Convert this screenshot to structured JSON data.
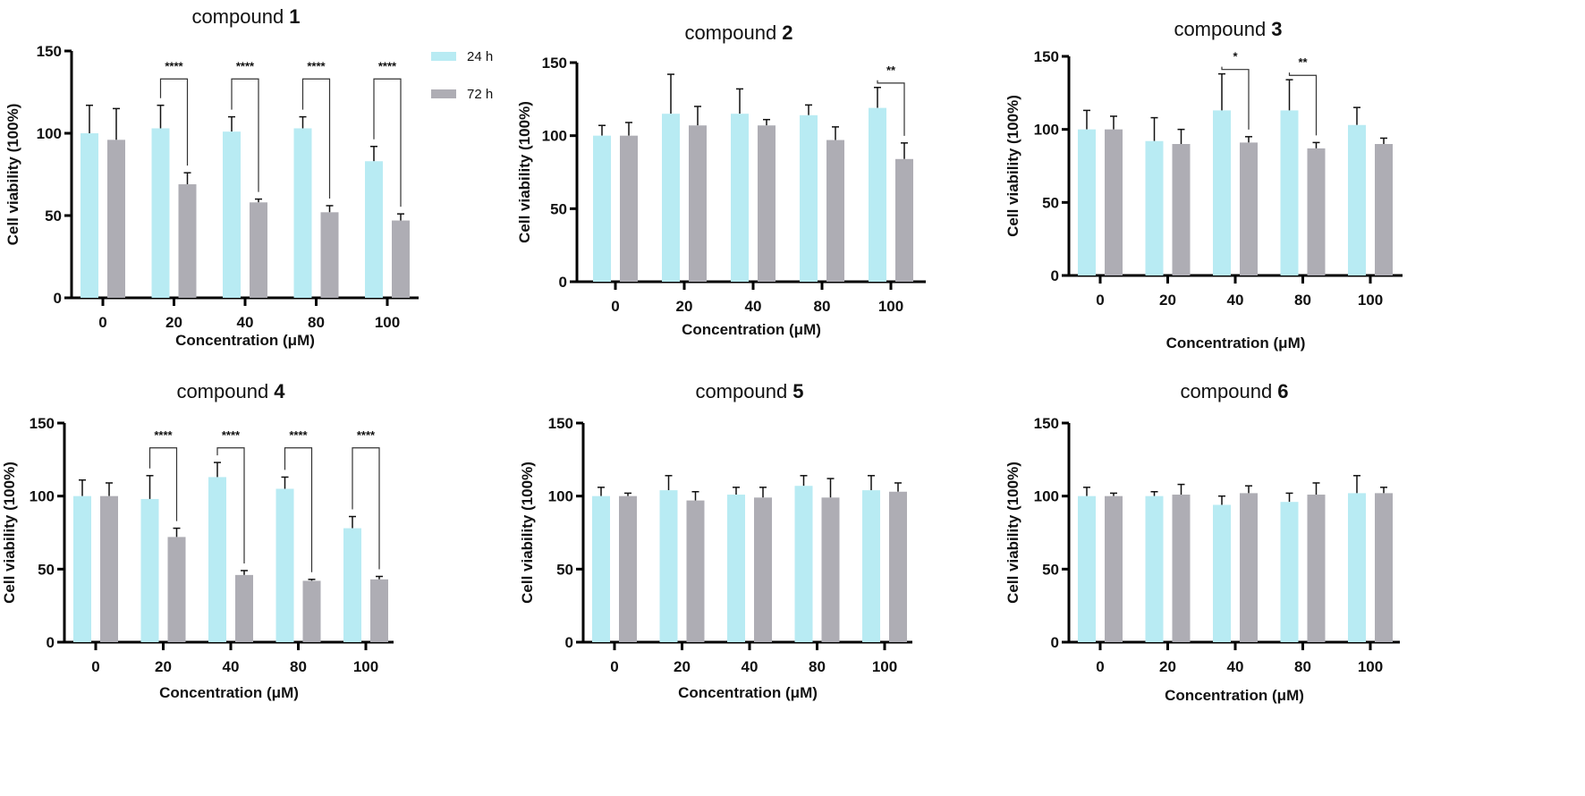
{
  "legend": [
    {
      "label": "24 h",
      "color": "#b8ebf3"
    },
    {
      "label": "72 h",
      "color": "#aeadb4"
    }
  ],
  "chart_data": [
    {
      "type": "bar",
      "title_prefix": "compound",
      "title_number": "1",
      "xlabel": "Concentration (μM)",
      "ylabel": "Cell viability (100%)",
      "ylim": [
        0,
        150
      ],
      "yticks": [
        0,
        50,
        100,
        150
      ],
      "categories": [
        "0",
        "20",
        "40",
        "80",
        "100"
      ],
      "series": [
        {
          "name": "24 h",
          "values": [
            100,
            103,
            101,
            103,
            83
          ],
          "error_top": [
            117,
            117,
            110,
            110,
            92
          ]
        },
        {
          "name": "72 h",
          "values": [
            96,
            69,
            58,
            52,
            47
          ],
          "error_top": [
            115,
            76,
            60,
            56,
            51
          ]
        }
      ],
      "significance": [
        {
          "category": "20",
          "label": "****"
        },
        {
          "category": "40",
          "label": "****"
        },
        {
          "category": "80",
          "label": "****"
        },
        {
          "category": "100",
          "label": "****"
        }
      ],
      "legend": "top-right"
    },
    {
      "type": "bar",
      "title_prefix": "compound",
      "title_number": "2",
      "xlabel": "Concentration (μM)",
      "ylabel": "Cell viability (100%)",
      "ylim": [
        0,
        150
      ],
      "yticks": [
        0,
        50,
        100,
        150
      ],
      "categories": [
        "0",
        "20",
        "40",
        "80",
        "100"
      ],
      "series": [
        {
          "name": "24 h",
          "values": [
            100,
            115,
            115,
            114,
            119
          ],
          "error_top": [
            107,
            142,
            132,
            121,
            133
          ]
        },
        {
          "name": "72 h",
          "values": [
            100,
            107,
            107,
            97,
            84
          ],
          "error_top": [
            109,
            120,
            111,
            106,
            95
          ]
        }
      ],
      "significance": [
        {
          "category": "100",
          "label": "**"
        }
      ]
    },
    {
      "type": "bar",
      "title_prefix": "compound",
      "title_number": "3",
      "xlabel": "Concentration (μM)",
      "ylabel": "Cell viability (100%)",
      "ylim": [
        0,
        150
      ],
      "yticks": [
        0,
        50,
        100,
        150
      ],
      "categories": [
        "0",
        "20",
        "40",
        "80",
        "100"
      ],
      "series": [
        {
          "name": "24 h",
          "values": [
            100,
            92,
            113,
            113,
            103
          ],
          "error_top": [
            113,
            108,
            138,
            134,
            115
          ]
        },
        {
          "name": "72 h",
          "values": [
            100,
            90,
            91,
            87,
            90
          ],
          "error_top": [
            109,
            100,
            95,
            91,
            94
          ]
        }
      ],
      "significance": [
        {
          "category": "40",
          "label": "*"
        },
        {
          "category": "80",
          "label": "**"
        }
      ]
    },
    {
      "type": "bar",
      "title_prefix": "compound",
      "title_number": "4",
      "xlabel": "Concentration (μM)",
      "ylabel": "Cell viability (100%)",
      "ylim": [
        0,
        150
      ],
      "yticks": [
        0,
        50,
        100,
        150
      ],
      "categories": [
        "0",
        "20",
        "40",
        "80",
        "100"
      ],
      "series": [
        {
          "name": "24 h",
          "values": [
            100,
            98,
            113,
            105,
            78
          ],
          "error_top": [
            111,
            114,
            123,
            113,
            86
          ]
        },
        {
          "name": "72 h",
          "values": [
            100,
            72,
            46,
            42,
            43
          ],
          "error_top": [
            109,
            78,
            49,
            43,
            45
          ]
        }
      ],
      "significance": [
        {
          "category": "20",
          "label": "****"
        },
        {
          "category": "40",
          "label": "****"
        },
        {
          "category": "80",
          "label": "****"
        },
        {
          "category": "100",
          "label": "****"
        }
      ]
    },
    {
      "type": "bar",
      "title_prefix": "compound",
      "title_number": "5",
      "xlabel": "Concentration (μM)",
      "ylabel": "Cell viability (100%)",
      "ylim": [
        0,
        150
      ],
      "yticks": [
        0,
        50,
        100,
        150
      ],
      "categories": [
        "0",
        "20",
        "40",
        "80",
        "100"
      ],
      "series": [
        {
          "name": "24 h",
          "values": [
            100,
            104,
            101,
            107,
            104
          ],
          "error_top": [
            106,
            114,
            106,
            114,
            114
          ]
        },
        {
          "name": "72 h",
          "values": [
            100,
            97,
            99,
            99,
            103
          ],
          "error_top": [
            102,
            103,
            106,
            112,
            109
          ]
        }
      ],
      "significance": []
    },
    {
      "type": "bar",
      "title_prefix": "compound",
      "title_number": "6",
      "xlabel": "Concentration (μM)",
      "ylabel": "Cell viability (100%)",
      "ylim": [
        0,
        150
      ],
      "yticks": [
        0,
        50,
        100,
        150
      ],
      "categories": [
        "0",
        "20",
        "40",
        "80",
        "100"
      ],
      "series": [
        {
          "name": "24 h",
          "values": [
            100,
            100,
            94,
            96,
            102
          ],
          "error_top": [
            106,
            103,
            100,
            102,
            114
          ]
        },
        {
          "name": "72 h",
          "values": [
            100,
            101,
            102,
            101,
            102
          ],
          "error_top": [
            102,
            108,
            107,
            109,
            106
          ]
        }
      ],
      "significance": []
    }
  ]
}
